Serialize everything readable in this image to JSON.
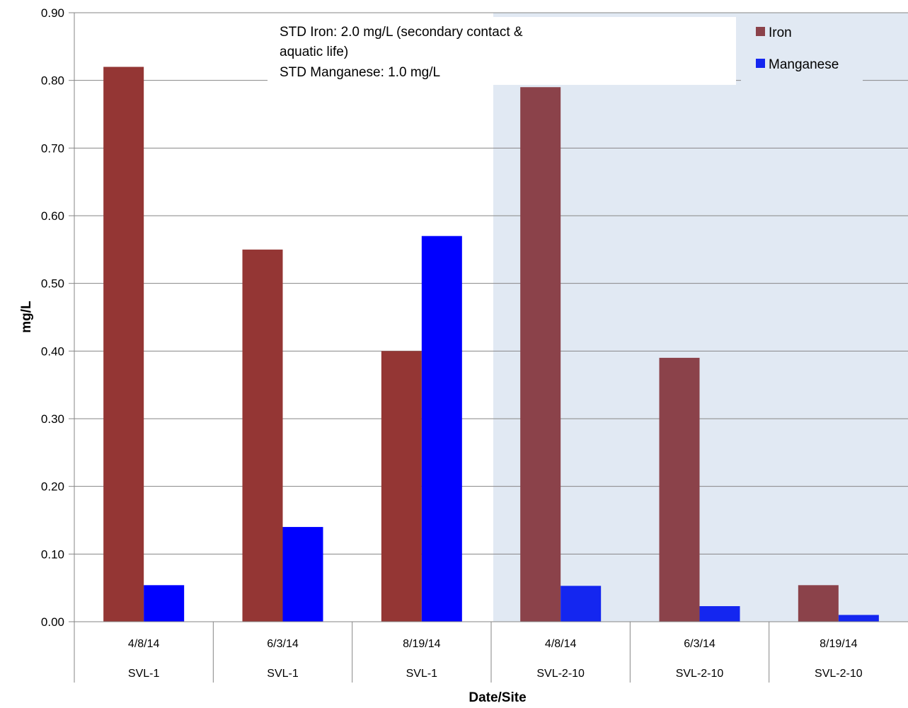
{
  "chart_data": {
    "type": "bar",
    "xlabel": "Date/Site",
    "ylabel": "mg/L",
    "ylim": [
      0,
      0.9
    ],
    "yticks": [
      "0.00",
      "0.10",
      "0.20",
      "0.30",
      "0.40",
      "0.50",
      "0.60",
      "0.70",
      "0.80",
      "0.90"
    ],
    "grid": "horizontal",
    "legend_position": "top-right",
    "categories": [
      {
        "date": "4/8/14",
        "site": "SVL-1"
      },
      {
        "date": "6/3/14",
        "site": "SVL-1"
      },
      {
        "date": "8/19/14",
        "site": "SVL-1"
      },
      {
        "date": "4/8/14",
        "site": "SVL-2-10"
      },
      {
        "date": "6/3/14",
        "site": "SVL-2-10"
      },
      {
        "date": "8/19/14",
        "site": "SVL-2-10"
      }
    ],
    "series": [
      {
        "name": "Iron",
        "color": "#943634",
        "shaded_color": "#8B424A",
        "values": [
          0.82,
          0.55,
          0.4,
          0.79,
          0.39,
          0.054
        ]
      },
      {
        "name": "Manganese",
        "color": "#0000FF",
        "shaded_color": "#1426F0",
        "values": [
          0.054,
          0.14,
          0.57,
          0.053,
          0.023,
          0.01
        ]
      }
    ],
    "shaded_region": {
      "from_category": 3,
      "to_category": 5,
      "color": "#E1E9F3"
    },
    "annotation": [
      "STD Iron: 2.0 mg/L (secondary contact &",
      "aquatic life)",
      "STD Manganese: 1.0 mg/L"
    ]
  }
}
